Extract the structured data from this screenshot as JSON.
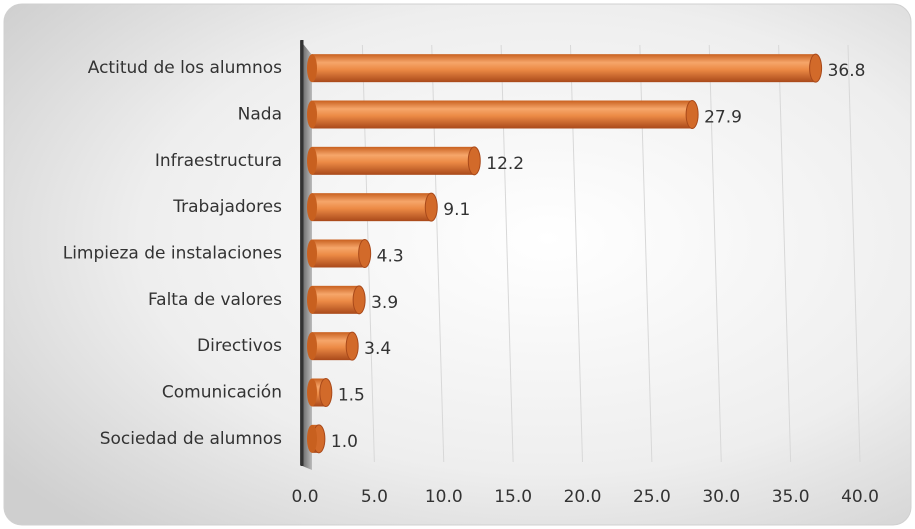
{
  "chart_data": {
    "type": "bar",
    "orientation": "horizontal",
    "categories": [
      "Actitud de los alumnos",
      "Nada",
      "Infraestructura",
      "Trabajadores",
      "Limpieza de instalaciones",
      "Falta de valores",
      "Directivos",
      "Comunicación",
      "Sociedad de alumnos"
    ],
    "values": [
      36.8,
      27.9,
      12.2,
      9.1,
      4.3,
      3.9,
      3.4,
      1.5,
      1.0
    ],
    "value_labels": [
      "36.8",
      "27.9",
      "12.2",
      "9.1",
      "4.3",
      "3.9",
      "3.4",
      "1.5",
      "1.0"
    ],
    "color": "#e8803a",
    "xlim": [
      0,
      40
    ],
    "xticks": [
      {
        "value": 0,
        "label": "0.0"
      },
      {
        "value": 5,
        "label": "5.0"
      },
      {
        "value": 10,
        "label": "10.0"
      },
      {
        "value": 15,
        "label": "15.0"
      },
      {
        "value": 20,
        "label": "20.0"
      },
      {
        "value": 25,
        "label": "25.0"
      },
      {
        "value": 30,
        "label": "30.0"
      },
      {
        "value": 35,
        "label": "35.0"
      },
      {
        "value": 40,
        "label": "40.0"
      }
    ],
    "grid": true
  }
}
